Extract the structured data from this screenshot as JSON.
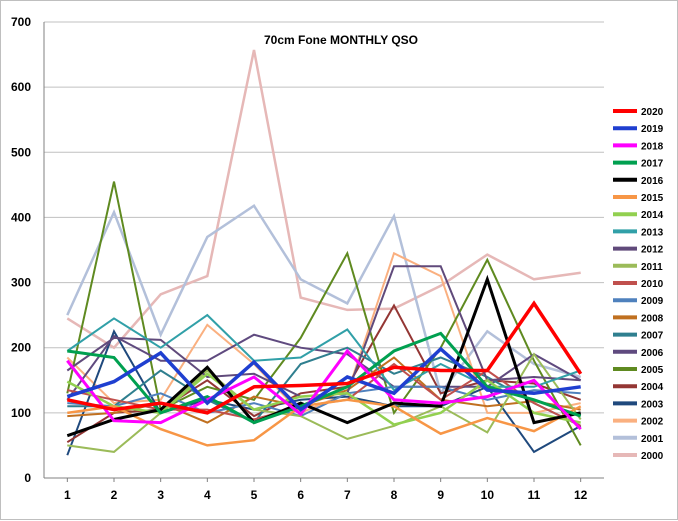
{
  "chart_data": {
    "type": "line",
    "title": "70cm Fone MONTHLY QSO",
    "xlabel": "",
    "ylabel": "",
    "x": [
      1,
      2,
      3,
      4,
      5,
      6,
      7,
      8,
      9,
      10,
      11,
      12
    ],
    "ylim": [
      0,
      700
    ],
    "yticks": [
      0,
      100,
      200,
      300,
      400,
      500,
      600,
      700
    ],
    "grid": true,
    "legend_position": "right",
    "series": [
      {
        "name": "2020",
        "color": "#ff0000",
        "width": 3.5,
        "values": [
          120,
          105,
          115,
          100,
          140,
          142,
          145,
          170,
          165,
          165,
          268,
          160
        ]
      },
      {
        "name": "2019",
        "color": "#1f3fd0",
        "width": 3.5,
        "values": [
          125,
          148,
          192,
          115,
          178,
          105,
          155,
          130,
          198,
          135,
          130,
          140
        ]
      },
      {
        "name": "2018",
        "color": "#ff00ff",
        "width": 3,
        "values": [
          180,
          88,
          85,
          120,
          155,
          98,
          195,
          120,
          115,
          125,
          150,
          75
        ]
      },
      {
        "name": "2017",
        "color": "#00a050",
        "width": 3,
        "values": [
          195,
          185,
          100,
          125,
          85,
          110,
          140,
          195,
          222,
          140,
          120,
          95
        ]
      },
      {
        "name": "2016",
        "color": "#000000",
        "width": 3,
        "values": [
          65,
          90,
          105,
          170,
          85,
          115,
          85,
          115,
          110,
          305,
          85,
          100
        ]
      },
      {
        "name": "2015",
        "color": "#f79646",
        "width": 2.5,
        "values": [
          100,
          110,
          75,
          50,
          58,
          110,
          120,
          110,
          68,
          92,
          72,
          110
        ]
      },
      {
        "name": "2014",
        "color": "#92d050",
        "width": 2.5,
        "values": [
          148,
          110,
          100,
          160,
          105,
          125,
          130,
          82,
          100,
          150,
          100,
          85
        ]
      },
      {
        "name": "2013",
        "color": "#31a0a8",
        "width": 2,
        "values": [
          195,
          245,
          200,
          250,
          180,
          185,
          228,
          135,
          175,
          140,
          140,
          165
        ]
      },
      {
        "name": "2012",
        "color": "#604a7b",
        "width": 2,
        "values": [
          165,
          215,
          212,
          155,
          160,
          125,
          130,
          325,
          325,
          150,
          155,
          150
        ]
      },
      {
        "name": "2011",
        "color": "#9bbb59",
        "width": 2,
        "values": [
          50,
          40,
          100,
          165,
          105,
          95,
          60,
          80,
          110,
          70,
          190,
          90
        ]
      },
      {
        "name": "2010",
        "color": "#c0504d",
        "width": 2,
        "values": [
          135,
          120,
          105,
          105,
          90,
          110,
          120,
          175,
          120,
          165,
          115,
          80
        ]
      },
      {
        "name": "2009",
        "color": "#4f81bd",
        "width": 2,
        "values": [
          115,
          110,
          130,
          100,
          115,
          95,
          130,
          140,
          140,
          120,
          135,
          130
        ]
      },
      {
        "name": "2008",
        "color": "#c07020",
        "width": 2,
        "values": [
          95,
          100,
          115,
          85,
          125,
          110,
          135,
          185,
          120,
          110,
          118,
          105
        ]
      },
      {
        "name": "2007",
        "color": "#2f7f8f",
        "width": 2,
        "values": [
          110,
          110,
          165,
          120,
          85,
          175,
          200,
          160,
          185,
          155,
          115,
          80
        ]
      },
      {
        "name": "2006",
        "color": "#5f4a7f",
        "width": 2,
        "values": [
          120,
          218,
          180,
          180,
          220,
          200,
          190,
          140,
          140,
          140,
          190,
          150
        ]
      },
      {
        "name": "2005",
        "color": "#5f8a20",
        "width": 2,
        "values": [
          130,
          455,
          105,
          140,
          120,
          215,
          345,
          100,
          200,
          335,
          180,
          50
        ]
      },
      {
        "name": "2004",
        "color": "#943634",
        "width": 2,
        "values": [
          55,
          100,
          105,
          150,
          95,
          130,
          140,
          265,
          130,
          150,
          145,
          120
        ]
      },
      {
        "name": "2003",
        "color": "#1f497d",
        "width": 2,
        "values": [
          35,
          225,
          100,
          120,
          105,
          120,
          125,
          110,
          110,
          140,
          40,
          80
        ]
      },
      {
        "name": "2002",
        "color": "#fab080",
        "width": 2,
        "values": [
          185,
          115,
          120,
          235,
          175,
          100,
          130,
          345,
          310,
          100,
          100,
          115
        ]
      },
      {
        "name": "2001",
        "color": "#b3c0da",
        "width": 2.5,
        "values": [
          250,
          408,
          220,
          370,
          418,
          305,
          268,
          402,
          130,
          225,
          175,
          155
        ]
      },
      {
        "name": "2000",
        "color": "#e6b8b7",
        "width": 2.5,
        "values": [
          245,
          200,
          282,
          310,
          657,
          277,
          258,
          260,
          295,
          343,
          305,
          315
        ]
      }
    ]
  }
}
